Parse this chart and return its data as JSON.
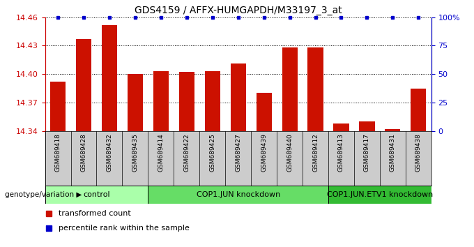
{
  "title": "GDS4159 / AFFX-HUMGAPDH/M33197_3_at",
  "samples": [
    "GSM689418",
    "GSM689428",
    "GSM689432",
    "GSM689435",
    "GSM689414",
    "GSM689422",
    "GSM689425",
    "GSM689427",
    "GSM689439",
    "GSM689440",
    "GSM689412",
    "GSM689413",
    "GSM689417",
    "GSM689431",
    "GSM689438"
  ],
  "values": [
    14.392,
    14.437,
    14.452,
    14.4,
    14.403,
    14.402,
    14.403,
    14.411,
    14.38,
    14.428,
    14.428,
    14.348,
    14.35,
    14.342,
    14.385
  ],
  "percentiles": [
    100,
    100,
    100,
    100,
    100,
    100,
    100,
    100,
    100,
    100,
    100,
    100,
    100,
    100,
    100
  ],
  "bar_color": "#cc1100",
  "percentile_color": "#0000cc",
  "ylim_left": [
    14.34,
    14.46
  ],
  "yticks_left": [
    14.34,
    14.37,
    14.4,
    14.43,
    14.46
  ],
  "yticks_right": [
    0,
    25,
    50,
    75,
    100
  ],
  "groups": [
    {
      "label": "control",
      "start": 0,
      "end": 4,
      "color": "#aaffaa"
    },
    {
      "label": "COP1.JUN knockdown",
      "start": 4,
      "end": 11,
      "color": "#66dd66"
    },
    {
      "label": "COP1.JUN.ETV1 knockdown",
      "start": 11,
      "end": 15,
      "color": "#33bb33"
    }
  ],
  "legend_items": [
    {
      "label": "transformed count",
      "color": "#cc1100"
    },
    {
      "label": "percentile rank within the sample",
      "color": "#0000cc"
    }
  ],
  "genotype_label": "genotype/variation",
  "left_axis_color": "#cc0000",
  "right_axis_color": "#0000cc",
  "background_color": "#ffffff",
  "sample_box_color": "#cccccc",
  "tick_label_fontsize": 7.5,
  "bar_width": 0.6
}
